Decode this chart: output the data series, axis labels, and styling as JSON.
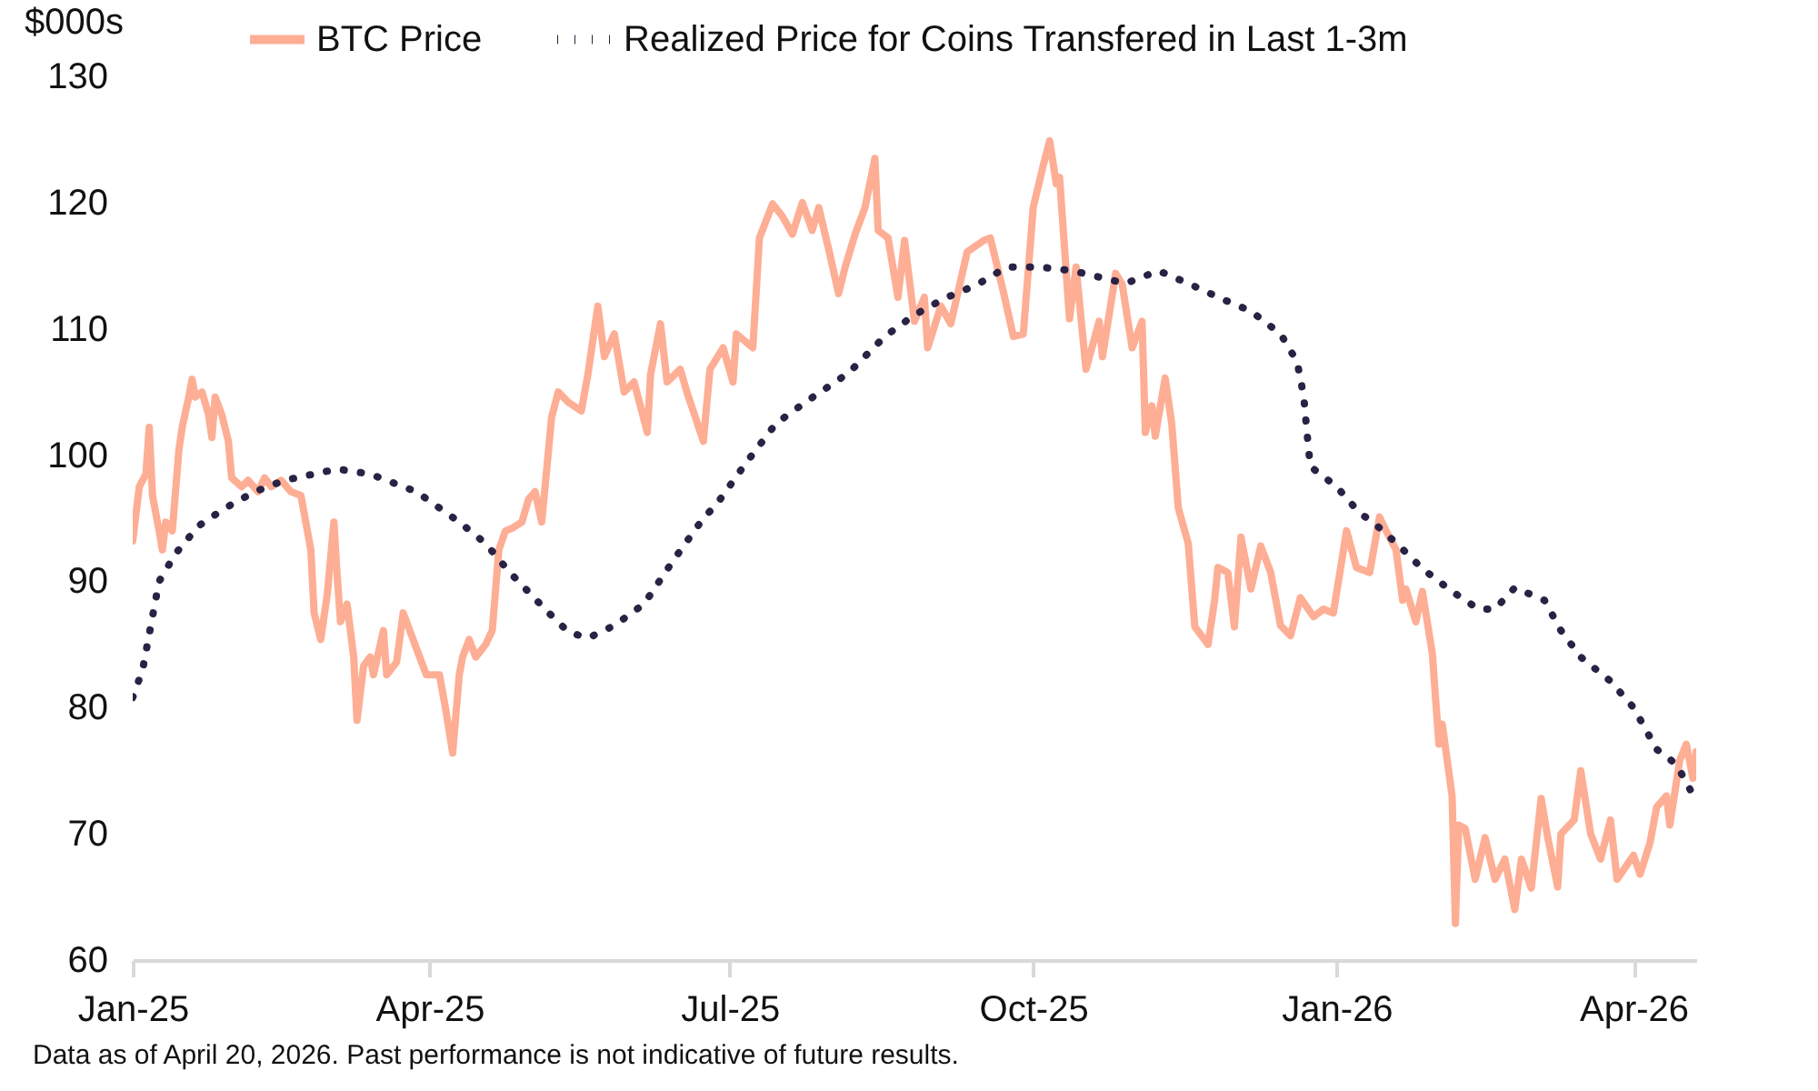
{
  "chart_data": {
    "type": "line",
    "ylabel": "$000s",
    "xlim": [
      "2025-01-01",
      "2026-04-20"
    ],
    "xticks": [
      {
        "value": "2025-01-01",
        "label": "Jan-25"
      },
      {
        "value": "2025-04-01",
        "label": "Apr-25"
      },
      {
        "value": "2025-07-01",
        "label": "Jul-25"
      },
      {
        "value": "2025-10-01",
        "label": "Oct-25"
      },
      {
        "value": "2026-01-01",
        "label": "Jan-26"
      },
      {
        "value": "2026-04-01",
        "label": "Apr-26"
      }
    ],
    "ylim": [
      60,
      130
    ],
    "yticks": [
      60,
      70,
      80,
      90,
      100,
      110,
      120,
      130
    ],
    "grid": false,
    "legend": "top",
    "marker": "none",
    "annotations": [
      "Data as of April 20, 2026. Past performance is not indicative of future results."
    ],
    "series": [
      {
        "name": "BTC Price",
        "color": "#fdae94",
        "line_style": "solid",
        "x": [
          "2025-01-01",
          "2025-01-03",
          "2025-01-05",
          "2025-01-06",
          "2025-01-07",
          "2025-01-09",
          "2025-01-10",
          "2025-01-11",
          "2025-01-13",
          "2025-01-15",
          "2025-01-16",
          "2025-01-18",
          "2025-01-19",
          "2025-01-20",
          "2025-01-22",
          "2025-01-24",
          "2025-01-25",
          "2025-01-26",
          "2025-01-28",
          "2025-01-30",
          "2025-01-31",
          "2025-02-03",
          "2025-02-05",
          "2025-02-08",
          "2025-02-10",
          "2025-02-12",
          "2025-02-15",
          "2025-02-18",
          "2025-02-21",
          "2025-02-24",
          "2025-02-25",
          "2025-02-27",
          "2025-03-01",
          "2025-03-03",
          "2025-03-04",
          "2025-03-05",
          "2025-03-07",
          "2025-03-09",
          "2025-03-10",
          "2025-03-12",
          "2025-03-14",
          "2025-03-15",
          "2025-03-18",
          "2025-03-19",
          "2025-03-22",
          "2025-03-24",
          "2025-03-26",
          "2025-03-29",
          "2025-03-31",
          "2025-04-02",
          "2025-04-04",
          "2025-04-06",
          "2025-04-08",
          "2025-04-10",
          "2025-04-11",
          "2025-04-13",
          "2025-04-15",
          "2025-04-18",
          "2025-04-20",
          "2025-04-22",
          "2025-04-24",
          "2025-04-26",
          "2025-04-29",
          "2025-05-01",
          "2025-05-03",
          "2025-05-05",
          "2025-05-08",
          "2025-05-10",
          "2025-05-13",
          "2025-05-17",
          "2025-05-19",
          "2025-05-22",
          "2025-05-24",
          "2025-05-27",
          "2025-05-30",
          "2025-06-02",
          "2025-06-06",
          "2025-06-07",
          "2025-06-10",
          "2025-06-12",
          "2025-06-16",
          "2025-06-18",
          "2025-06-23",
          "2025-06-25",
          "2025-06-29",
          "2025-07-02",
          "2025-07-03",
          "2025-07-08",
          "2025-07-10",
          "2025-07-14",
          "2025-07-17",
          "2025-07-20",
          "2025-07-23",
          "2025-07-26",
          "2025-07-28",
          "2025-07-31",
          "2025-08-03",
          "2025-08-05",
          "2025-08-08",
          "2025-08-11",
          "2025-08-14",
          "2025-08-15",
          "2025-08-18",
          "2025-08-21",
          "2025-08-23",
          "2025-08-26",
          "2025-08-29",
          "2025-08-30",
          "2025-09-03",
          "2025-09-06",
          "2025-09-11",
          "2025-09-16",
          "2025-09-18",
          "2025-09-22",
          "2025-09-25",
          "2025-09-28",
          "2025-10-01",
          "2025-10-04",
          "2025-10-06",
          "2025-10-08",
          "2025-10-09",
          "2025-10-12",
          "2025-10-14",
          "2025-10-17",
          "2025-10-21",
          "2025-10-22",
          "2025-10-26",
          "2025-10-28",
          "2025-10-31",
          "2025-11-03",
          "2025-11-04",
          "2025-11-06",
          "2025-11-07",
          "2025-11-10",
          "2025-11-12",
          "2025-11-14",
          "2025-11-17",
          "2025-11-19",
          "2025-11-23",
          "2025-11-25",
          "2025-11-26",
          "2025-11-29",
          "2025-12-01",
          "2025-12-03",
          "2025-12-06",
          "2025-12-09",
          "2025-12-12",
          "2025-12-15",
          "2025-12-18",
          "2025-12-21",
          "2025-12-25",
          "2025-12-28",
          "2025-12-31",
          "2026-01-04",
          "2026-01-07",
          "2026-01-11",
          "2026-01-14",
          "2026-01-16",
          "2026-01-19",
          "2026-01-21",
          "2026-01-22",
          "2026-01-25",
          "2026-01-27",
          "2026-01-30",
          "2026-02-01",
          "2026-02-02",
          "2026-02-05",
          "2026-02-06",
          "2026-02-07",
          "2026-02-09",
          "2026-02-12",
          "2026-02-15",
          "2026-02-18",
          "2026-02-21",
          "2026-02-24",
          "2026-02-26",
          "2026-03-01",
          "2026-03-04",
          "2026-03-06",
          "2026-03-09",
          "2026-03-10",
          "2026-03-14",
          "2026-03-16",
          "2026-03-19",
          "2026-03-22",
          "2026-03-25",
          "2026-03-27",
          "2026-04-01",
          "2026-04-03",
          "2026-04-06",
          "2026-04-08",
          "2026-04-11",
          "2026-04-12",
          "2026-04-15",
          "2026-04-17",
          "2026-04-19",
          "2026-04-20"
        ],
        "values": [
          93.2,
          97.5,
          98.5,
          102.2,
          96.8,
          94,
          92.5,
          94.7,
          94,
          100.4,
          102.2,
          104.6,
          106,
          104.6,
          105,
          103.2,
          101.4,
          104.6,
          103.2,
          101.1,
          98.2,
          97.5,
          98,
          97.1,
          98.2,
          97.5,
          98,
          97.1,
          96.8,
          92.5,
          87.5,
          85.4,
          89,
          94.7,
          90.4,
          86.8,
          88.2,
          84,
          79,
          83.3,
          84,
          82.6,
          86.1,
          82.6,
          83.6,
          87.5,
          86.1,
          84,
          82.6,
          82.6,
          82.6,
          79.7,
          76.4,
          82.6,
          84,
          85.4,
          84,
          85,
          86.1,
          92.5,
          94,
          94.2,
          94.7,
          96.5,
          97.1,
          94.7,
          103,
          105,
          104.2,
          103.5,
          106.4,
          111.8,
          107.8,
          109.6,
          105,
          105.8,
          101.8,
          106.4,
          110.4,
          105.8,
          106.8,
          105,
          101.1,
          106.8,
          108.5,
          105.8,
          109.6,
          108.5,
          117.2,
          119.9,
          118.9,
          117.5,
          120,
          117.8,
          119.6,
          116.3,
          112.8,
          114.9,
          117.5,
          119.6,
          123.5,
          117.8,
          117.2,
          112.5,
          117,
          110.6,
          112.5,
          108.5,
          111.8,
          110.4,
          116.1,
          117,
          117.2,
          112.9,
          109.4,
          109.6,
          119.6,
          122.9,
          124.9,
          121.5,
          122,
          110.8,
          114.9,
          106.8,
          110.6,
          107.8,
          114.4,
          113.5,
          108.5,
          110.6,
          101.8,
          103.9,
          101.5,
          106.1,
          102.5,
          95.8,
          93,
          86.4,
          85,
          88.5,
          91.1,
          90.7,
          86.4,
          93.5,
          89.4,
          92.8,
          90.7,
          86.5,
          85.7,
          88.7,
          87.2,
          87.8,
          87.5,
          94,
          91.1,
          90.7,
          95.1,
          94,
          92.5,
          88.5,
          89.4,
          86.8,
          89.2,
          84.3,
          77.1,
          78.7,
          73,
          62.9,
          70.7,
          70.4,
          66.4,
          69.7,
          66.4,
          68,
          64,
          68,
          65.7,
          72.8,
          69.7,
          65.8,
          70,
          71.1,
          75,
          70,
          68,
          71.1,
          66.4,
          68.3,
          66.8,
          69.3,
          72.1,
          73,
          70.7,
          75.8,
          77.1,
          74.4,
          76.5
        ]
      },
      {
        "name": "Realized Price for Coins Transfered in Last 1-3m",
        "color": "#2a2244",
        "line_style": "dotted",
        "x": [
          "2025-01-01",
          "2025-01-04",
          "2025-01-07",
          "2025-01-09",
          "2025-01-14",
          "2025-01-21",
          "2025-01-29",
          "2025-02-07",
          "2025-02-16",
          "2025-03-04",
          "2025-03-14",
          "2025-03-28",
          "2025-04-10",
          "2025-04-18",
          "2025-04-25",
          "2025-05-06",
          "2025-05-13",
          "2025-05-19",
          "2025-05-27",
          "2025-06-05",
          "2025-06-14",
          "2025-06-23",
          "2025-06-27",
          "2025-07-06",
          "2025-07-15",
          "2025-07-24",
          "2025-08-06",
          "2025-08-17",
          "2025-08-26",
          "2025-09-04",
          "2025-09-14",
          "2025-09-23",
          "2025-10-03",
          "2025-10-13",
          "2025-10-29",
          "2025-11-08",
          "2025-11-17",
          "2025-11-27",
          "2025-12-06",
          "2025-12-15",
          "2025-12-20",
          "2025-12-22",
          "2025-12-23",
          "2025-12-24",
          "2026-01-01",
          "2026-01-08",
          "2026-01-12",
          "2026-01-20",
          "2026-01-27",
          "2026-02-05",
          "2026-02-13",
          "2026-02-18",
          "2026-02-24",
          "2026-03-05",
          "2026-03-10",
          "2026-03-16",
          "2026-03-25",
          "2026-04-01",
          "2026-04-08",
          "2026-04-14",
          "2026-04-19"
        ],
        "values": [
          80.8,
          83,
          87.2,
          90,
          92.2,
          94.4,
          95.8,
          97.1,
          98,
          98.9,
          98.5,
          97.1,
          94.7,
          93,
          90.8,
          87.8,
          86,
          85.5,
          86.5,
          88.2,
          91.7,
          95,
          96.1,
          99.4,
          102.5,
          104.2,
          106.5,
          109.4,
          111.1,
          112.4,
          113.5,
          114.9,
          114.9,
          114.6,
          113.6,
          114.6,
          113.6,
          112.4,
          111.4,
          109.6,
          107.4,
          104.7,
          101.8,
          99.1,
          97.5,
          95.4,
          94.7,
          92.8,
          91,
          89.2,
          87.8,
          87.8,
          89.5,
          88.5,
          86.1,
          84,
          82.1,
          80,
          76.7,
          75.5,
          73.1
        ]
      }
    ]
  }
}
